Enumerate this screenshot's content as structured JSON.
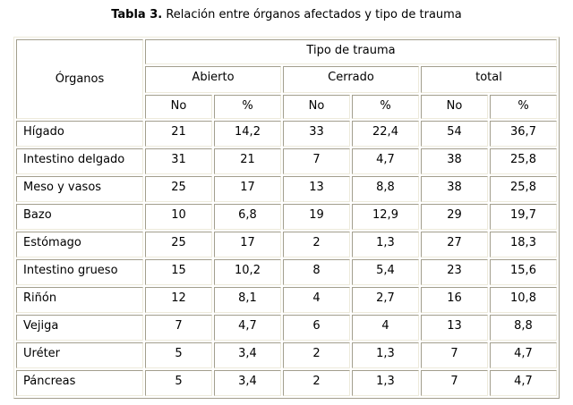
{
  "title": {
    "label": "Tabla 3.",
    "text": "Relación entre órganos afectados y tipo de trauma"
  },
  "table": {
    "organ_header": "Órganos",
    "trauma_header": "Tipo de trauma",
    "group_headers": [
      "Abierto",
      "Cerrado",
      "total"
    ],
    "sub_headers": [
      "No",
      "%",
      "No",
      "%",
      "No",
      "%"
    ],
    "rows": [
      {
        "organ": "Hígado",
        "values": [
          "21",
          "14,2",
          "33",
          "22,4",
          "54",
          "36,7"
        ]
      },
      {
        "organ": "Intestino delgado",
        "values": [
          "31",
          "21",
          "7",
          "4,7",
          "38",
          "25,8"
        ]
      },
      {
        "organ": "Meso y vasos",
        "values": [
          "25",
          "17",
          "13",
          "8,8",
          "38",
          "25,8"
        ]
      },
      {
        "organ": "Bazo",
        "values": [
          "10",
          "6,8",
          "19",
          "12,9",
          "29",
          "19,7"
        ]
      },
      {
        "organ": "Estómago",
        "values": [
          "25",
          "17",
          "2",
          "1,3",
          "27",
          "18,3"
        ]
      },
      {
        "organ": "Intestino grueso",
        "values": [
          "15",
          "10,2",
          "8",
          "5,4",
          "23",
          "15,6"
        ]
      },
      {
        "organ": "Riñón",
        "values": [
          "12",
          "8,1",
          "4",
          "2,7",
          "16",
          "10,8"
        ]
      },
      {
        "organ": "Vejiga",
        "values": [
          "7",
          "4,7",
          "6",
          "4",
          "13",
          "8,8"
        ]
      },
      {
        "organ": "Uréter",
        "values": [
          "5",
          "3,4",
          "2",
          "1,3",
          "7",
          "4,7"
        ]
      },
      {
        "organ": "Páncreas",
        "values": [
          "5",
          "3,4",
          "2",
          "1,3",
          "7",
          "4,7"
        ]
      }
    ]
  },
  "colors": {
    "background": "#ffffff",
    "text": "#000000",
    "border_dark": "#a29e8d",
    "border_light": "#edeadb"
  }
}
